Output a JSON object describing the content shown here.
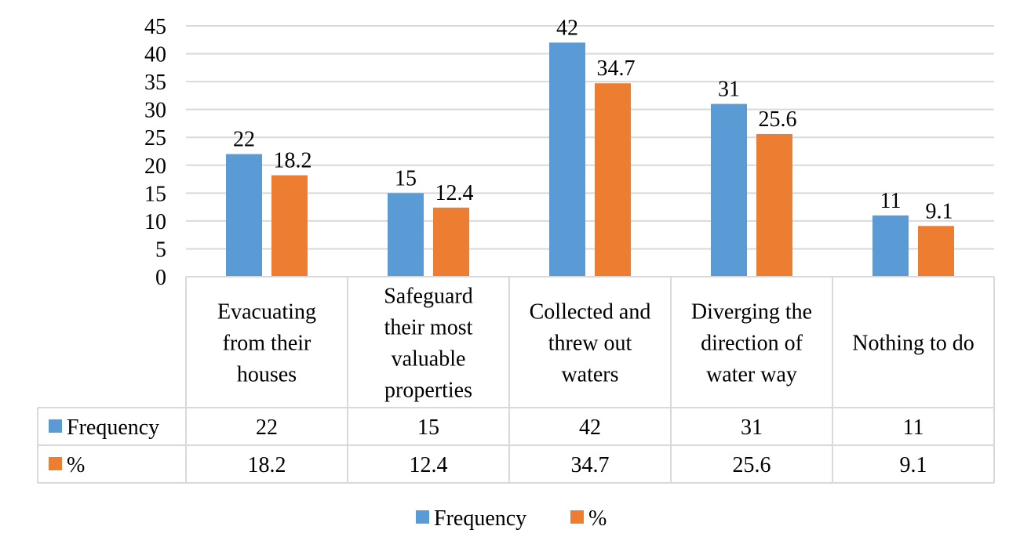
{
  "chart_data": {
    "type": "bar",
    "categories": [
      [
        "Evacuating",
        "from their",
        "houses"
      ],
      [
        "Safeguard",
        "their most",
        "valuable",
        "properties"
      ],
      [
        "Collected and",
        "threw out",
        "waters"
      ],
      [
        "Diverging the",
        "direction of",
        "water way"
      ],
      [
        "Nothing to do"
      ]
    ],
    "series": [
      {
        "name": "Frequency",
        "color": "#5B9BD5",
        "values": [
          22,
          15,
          42,
          31,
          11
        ],
        "labels": [
          "22",
          "15",
          "42",
          "31",
          "11"
        ]
      },
      {
        "name": "%",
        "color": "#ED7D31",
        "values": [
          18.2,
          12.4,
          34.7,
          25.6,
          9.1
        ],
        "labels": [
          "18.2",
          "12.4",
          "34.7",
          "25.6",
          "9.1"
        ]
      }
    ],
    "ylim": [
      0,
      45
    ],
    "yticks": [
      "0",
      "5",
      "10",
      "15",
      "20",
      "25",
      "30",
      "35",
      "40",
      "45"
    ],
    "grid": true,
    "data_table": true,
    "legend_position": "bottom"
  }
}
